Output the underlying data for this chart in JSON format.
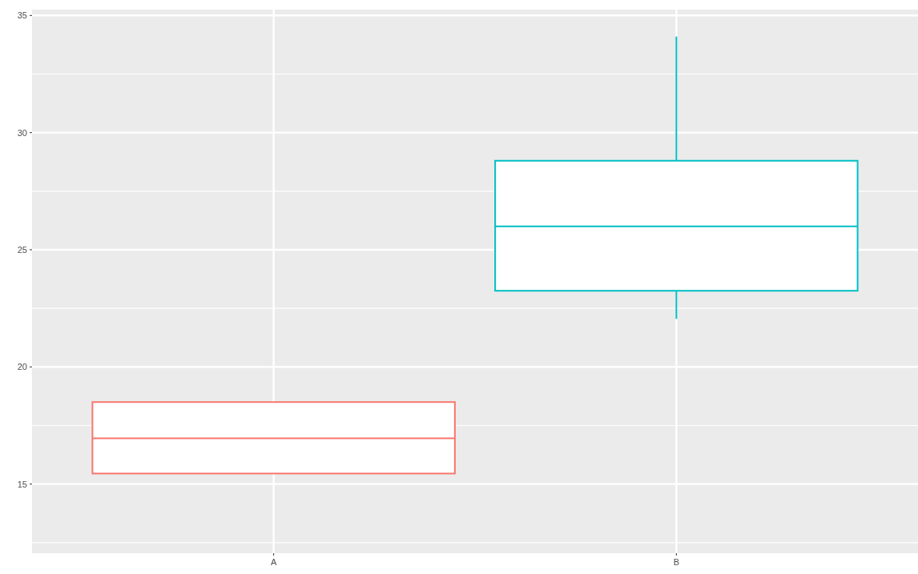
{
  "chart_data": {
    "type": "box",
    "categories": [
      "A",
      "B"
    ],
    "series": [
      {
        "colors": [
          "#f8766d",
          "#00bfc4"
        ],
        "boxes": [
          {
            "low": null,
            "q1": 15.45,
            "median": 16.95,
            "q3": 18.5,
            "high": null
          },
          {
            "low": 22.05,
            "q1": 23.25,
            "median": 26.0,
            "q3": 28.8,
            "high": 34.1
          }
        ]
      }
    ],
    "ylim": [
      12.05,
      35.25
    ],
    "yticks": [
      15,
      20,
      25,
      30,
      35
    ],
    "grid": true
  }
}
